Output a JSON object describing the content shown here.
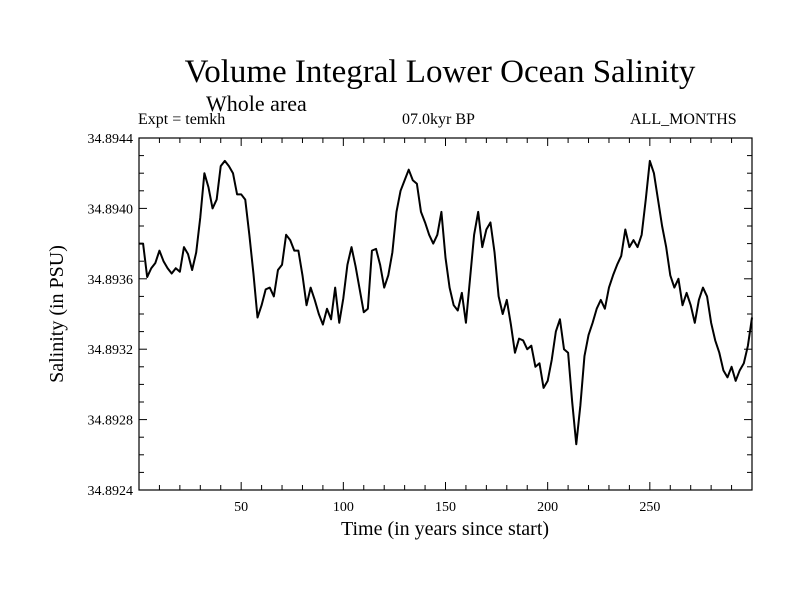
{
  "chart_data": {
    "type": "line",
    "title": "Volume Integral Lower Ocean Salinity",
    "subtitle": "Whole area",
    "experiment": "Expt = temkh",
    "period": "07.0kyr BP",
    "months": "ALL_MONTHS",
    "xlabel": "Time (in years since start)",
    "ylabel": "Salinity (in PSU)",
    "xlim": [
      0,
      300
    ],
    "ylim": [
      34.8924,
      34.8944
    ],
    "x_ticks": [
      50,
      100,
      150,
      200,
      250
    ],
    "x_tick_labels": [
      "50",
      "100",
      "150",
      "200",
      "250"
    ],
    "y_ticks": [
      34.8924,
      34.8928,
      34.8932,
      34.8936,
      34.894,
      34.8944
    ],
    "y_tick_labels": [
      "34.8924",
      "34.8928",
      "34.8932",
      "34.8936",
      "34.8940",
      "34.8944"
    ],
    "grid": false,
    "series": [
      {
        "name": "Salinity",
        "color": "#000000",
        "points": [
          [
            0,
            34.8938
          ],
          [
            2,
            34.8938
          ],
          [
            4,
            34.89361
          ],
          [
            6,
            34.89366
          ],
          [
            8,
            34.89369
          ],
          [
            10,
            34.89376
          ],
          [
            12,
            34.8937
          ],
          [
            14,
            34.89366
          ],
          [
            16,
            34.89363
          ],
          [
            18,
            34.89366
          ],
          [
            20,
            34.89364
          ],
          [
            22,
            34.89378
          ],
          [
            24,
            34.89374
          ],
          [
            26,
            34.89365
          ],
          [
            28,
            34.89375
          ],
          [
            30,
            34.89395
          ],
          [
            32,
            34.8942
          ],
          [
            34,
            34.89412
          ],
          [
            36,
            34.894
          ],
          [
            38,
            34.89405
          ],
          [
            40,
            34.89424
          ],
          [
            42,
            34.89427
          ],
          [
            44,
            34.89424
          ],
          [
            46,
            34.8942
          ],
          [
            48,
            34.89408
          ],
          [
            50,
            34.89408
          ],
          [
            52,
            34.89405
          ],
          [
            54,
            34.89385
          ],
          [
            56,
            34.89363
          ],
          [
            58,
            34.89338
          ],
          [
            60,
            34.89345
          ],
          [
            62,
            34.89354
          ],
          [
            64,
            34.89355
          ],
          [
            66,
            34.8935
          ],
          [
            68,
            34.89365
          ],
          [
            70,
            34.89368
          ],
          [
            72,
            34.89385
          ],
          [
            74,
            34.89382
          ],
          [
            76,
            34.89376
          ],
          [
            78,
            34.89376
          ],
          [
            80,
            34.89362
          ],
          [
            82,
            34.89345
          ],
          [
            84,
            34.89355
          ],
          [
            86,
            34.89348
          ],
          [
            88,
            34.8934
          ],
          [
            90,
            34.89334
          ],
          [
            92,
            34.89343
          ],
          [
            94,
            34.89337
          ],
          [
            96,
            34.89355
          ],
          [
            98,
            34.89335
          ],
          [
            100,
            34.89349
          ],
          [
            102,
            34.89368
          ],
          [
            104,
            34.89378
          ],
          [
            106,
            34.89367
          ],
          [
            108,
            34.89354
          ],
          [
            110,
            34.89341
          ],
          [
            112,
            34.89343
          ],
          [
            114,
            34.89376
          ],
          [
            116,
            34.89377
          ],
          [
            118,
            34.89368
          ],
          [
            120,
            34.89355
          ],
          [
            122,
            34.89362
          ],
          [
            124,
            34.89375
          ],
          [
            126,
            34.89398
          ],
          [
            128,
            34.8941
          ],
          [
            130,
            34.89416
          ],
          [
            132,
            34.89422
          ],
          [
            134,
            34.89416
          ],
          [
            136,
            34.89414
          ],
          [
            138,
            34.89398
          ],
          [
            140,
            34.89392
          ],
          [
            142,
            34.89385
          ],
          [
            144,
            34.8938
          ],
          [
            146,
            34.89385
          ],
          [
            148,
            34.89398
          ],
          [
            150,
            34.89372
          ],
          [
            152,
            34.89355
          ],
          [
            154,
            34.89345
          ],
          [
            156,
            34.89342
          ],
          [
            158,
            34.89352
          ],
          [
            160,
            34.89335
          ],
          [
            162,
            34.8936
          ],
          [
            164,
            34.89385
          ],
          [
            166,
            34.89398
          ],
          [
            168,
            34.89378
          ],
          [
            170,
            34.89388
          ],
          [
            172,
            34.89392
          ],
          [
            174,
            34.89375
          ],
          [
            176,
            34.8935
          ],
          [
            178,
            34.8934
          ],
          [
            180,
            34.89348
          ],
          [
            182,
            34.89334
          ],
          [
            184,
            34.89318
          ],
          [
            186,
            34.89326
          ],
          [
            188,
            34.89325
          ],
          [
            190,
            34.8932
          ],
          [
            192,
            34.89322
          ],
          [
            194,
            34.8931
          ],
          [
            196,
            34.89312
          ],
          [
            198,
            34.89298
          ],
          [
            200,
            34.89302
          ],
          [
            202,
            34.89314
          ],
          [
            204,
            34.8933
          ],
          [
            206,
            34.89337
          ],
          [
            208,
            34.8932
          ],
          [
            210,
            34.89318
          ],
          [
            212,
            34.8929
          ],
          [
            214,
            34.89266
          ],
          [
            216,
            34.89288
          ],
          [
            218,
            34.89316
          ],
          [
            220,
            34.89328
          ],
          [
            222,
            34.89335
          ],
          [
            224,
            34.89343
          ],
          [
            226,
            34.89348
          ],
          [
            228,
            34.89343
          ],
          [
            230,
            34.89355
          ],
          [
            232,
            34.89362
          ],
          [
            234,
            34.89368
          ],
          [
            236,
            34.89373
          ],
          [
            238,
            34.89388
          ],
          [
            240,
            34.89378
          ],
          [
            242,
            34.89382
          ],
          [
            244,
            34.89378
          ],
          [
            246,
            34.89385
          ],
          [
            248,
            34.89405
          ],
          [
            250,
            34.89427
          ],
          [
            252,
            34.8942
          ],
          [
            254,
            34.89405
          ],
          [
            256,
            34.8939
          ],
          [
            258,
            34.89378
          ],
          [
            260,
            34.89362
          ],
          [
            262,
            34.89355
          ],
          [
            264,
            34.8936
          ],
          [
            266,
            34.89345
          ],
          [
            268,
            34.89352
          ],
          [
            270,
            34.89345
          ],
          [
            272,
            34.89335
          ],
          [
            274,
            34.89348
          ],
          [
            276,
            34.89355
          ],
          [
            278,
            34.8935
          ],
          [
            280,
            34.89335
          ],
          [
            282,
            34.89325
          ],
          [
            284,
            34.89318
          ],
          [
            286,
            34.89308
          ],
          [
            288,
            34.89304
          ],
          [
            290,
            34.8931
          ],
          [
            292,
            34.89302
          ],
          [
            294,
            34.89308
          ],
          [
            296,
            34.89312
          ],
          [
            298,
            34.89322
          ],
          [
            300,
            34.89338
          ]
        ]
      }
    ]
  }
}
